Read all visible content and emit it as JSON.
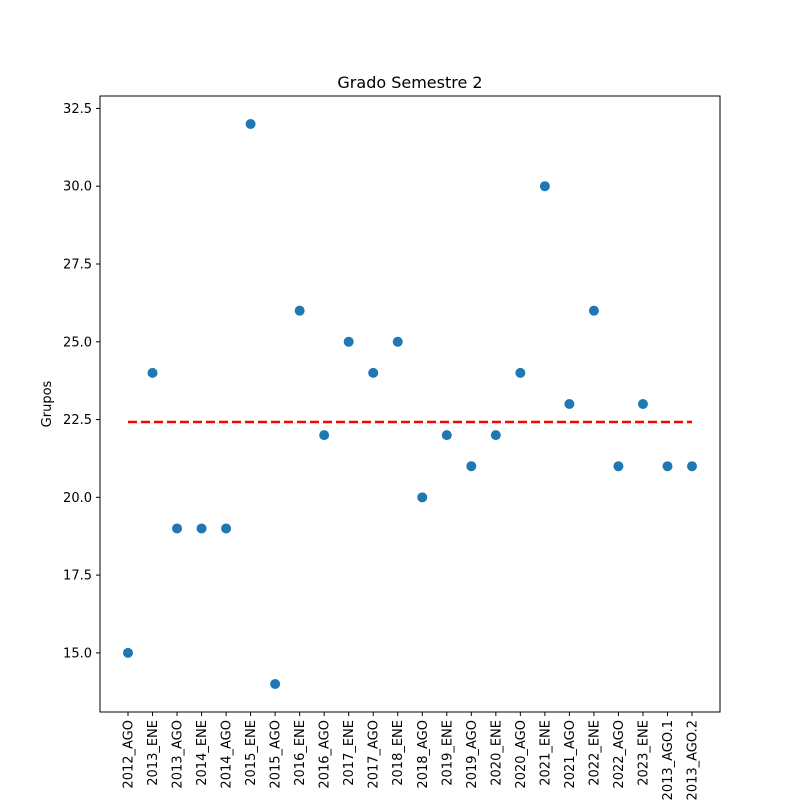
{
  "chart_data": {
    "type": "scatter",
    "title": "Grado Semestre 2",
    "xlabel": "",
    "ylabel": "Grupos",
    "categories": [
      "2012_AGO",
      "2013_ENE",
      "2013_AGO",
      "2014_ENE",
      "2014_AGO",
      "2015_ENE",
      "2015_AGO",
      "2016_ENE",
      "2016_AGO",
      "2017_ENE",
      "2017_AGO",
      "2018_ENE",
      "2018_AGO",
      "2019_ENE",
      "2019_AGO",
      "2020_ENE",
      "2020_AGO",
      "2021_ENE",
      "2021_AGO",
      "2022_ENE",
      "2022_AGO",
      "2023_ENE",
      "2013_AGO.1",
      "2013_AGO.2"
    ],
    "values": [
      15,
      24,
      19,
      19,
      19,
      32,
      14,
      26,
      22,
      25,
      24,
      25,
      20,
      22,
      21,
      22,
      24,
      30,
      23,
      26,
      21,
      23,
      21,
      21
    ],
    "mean_line": 22.42,
    "ylim": [
      13.1,
      32.9
    ],
    "yticks": [
      15.0,
      17.5,
      20.0,
      22.5,
      25.0,
      27.5,
      30.0,
      32.5
    ],
    "ytick_labels": [
      "15.0",
      "17.5",
      "20.0",
      "22.5",
      "25.0",
      "27.5",
      "30.0",
      "32.5"
    ],
    "colors": {
      "points": "#1f77b4",
      "mean_line": "#ff0000",
      "axes": "#000000"
    },
    "grid": false
  }
}
